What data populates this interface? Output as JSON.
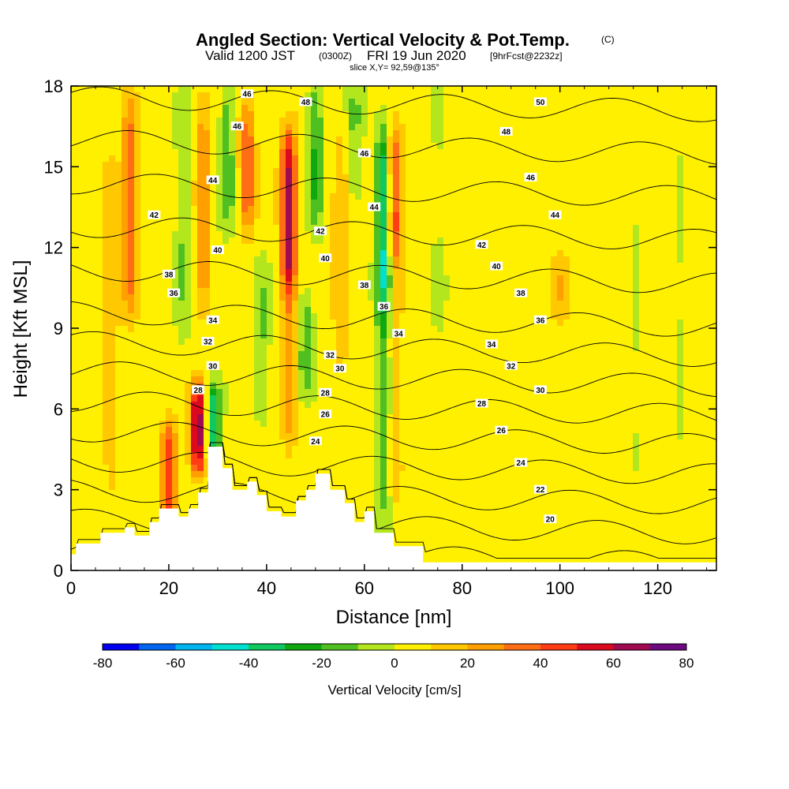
{
  "titles": {
    "main": "Angled Section: Vertical Velocity & Pot.Temp.",
    "main_suffix": "(C)",
    "valid_prefix": "Valid 1200 JST",
    "valid_z": "(0300Z)",
    "valid_date": "FRI 19 Jun 2020",
    "forecast": "[9hrFcst@2232z]",
    "slice": "slice X,Y= 92,59@135°"
  },
  "colors": {
    "bins": [
      "#0000ee",
      "#0066f0",
      "#00b4f0",
      "#00e0d0",
      "#10c860",
      "#10a810",
      "#50c020",
      "#b4e61e",
      "#fff000",
      "#ffc800",
      "#ffa000",
      "#ff6e14",
      "#ff3c14",
      "#dc0a1e",
      "#a00a50",
      "#6e0a80"
    ],
    "terrain": "#ffffff",
    "contour": "#000000"
  },
  "chart_data": {
    "type": "heatmap",
    "xlabel": "Distance [nm]",
    "ylabel": "Height [Kft MSL]",
    "xlim": [
      0,
      132
    ],
    "ylim": [
      0,
      18
    ],
    "x_ticks": [
      0,
      20,
      40,
      60,
      80,
      100,
      120
    ],
    "y_ticks": [
      0,
      3,
      6,
      9,
      12,
      15,
      18
    ],
    "x_tick_labels": [
      "0",
      "20",
      "40",
      "60",
      "80",
      "100",
      "120"
    ],
    "y_tick_labels": [
      "0",
      "3",
      "6",
      "9",
      "12",
      "15",
      "18"
    ],
    "colorbar": {
      "title": "Vertical Velocity [cm/s]",
      "levels": [
        -80,
        -70,
        -60,
        -50,
        -40,
        -30,
        -20,
        -10,
        0,
        10,
        20,
        30,
        40,
        50,
        60,
        70,
        80
      ],
      "tick_values": [
        -80,
        -60,
        -40,
        -20,
        0,
        20,
        40,
        60,
        80
      ],
      "tick_labels": [
        "-80",
        "-60",
        "-40",
        "-20",
        "0",
        "20",
        "40",
        "60",
        "80"
      ]
    },
    "background_velocity": 4,
    "velocity_features": [
      {
        "x": 12,
        "y0": 10,
        "y1": 17,
        "value": 35
      },
      {
        "x": 8,
        "y0": 3,
        "y1": 15,
        "value": 15
      },
      {
        "x": 20,
        "y0": 2,
        "y1": 5,
        "value": 45
      },
      {
        "x": 23,
        "y0": 9,
        "y1": 17,
        "value": -15
      },
      {
        "x": 26,
        "y0": 4,
        "y1": 6.5,
        "value": 65
      },
      {
        "x": 29,
        "y0": 4.5,
        "y1": 6.5,
        "value": -40
      },
      {
        "x": 27,
        "y0": 10,
        "y1": 17,
        "value": 25
      },
      {
        "x": 32,
        "y0": 13,
        "y1": 18,
        "value": -20
      },
      {
        "x": 36,
        "y0": 13,
        "y1": 17,
        "value": 35
      },
      {
        "x": 39,
        "y0": 6,
        "y1": 11,
        "value": -15
      },
      {
        "x": 44.5,
        "y0": 11,
        "y1": 16,
        "value": 60
      },
      {
        "x": 44.5,
        "y0": 5,
        "y1": 11,
        "value": 25
      },
      {
        "x": 48,
        "y0": 7,
        "y1": 10,
        "value": -20
      },
      {
        "x": 50,
        "y0": 13,
        "y1": 18,
        "value": -25
      },
      {
        "x": 55,
        "y0": 8,
        "y1": 16,
        "value": 15
      },
      {
        "x": 58,
        "y0": 14,
        "y1": 18,
        "value": -15
      },
      {
        "x": 64,
        "y0": 10,
        "y1": 16,
        "value": -50
      },
      {
        "x": 64,
        "y0": 2,
        "y1": 10,
        "value": -25
      },
      {
        "x": 66,
        "y0": 12,
        "y1": 16,
        "value": 45
      },
      {
        "x": 66,
        "y0": 3,
        "y1": 12,
        "value": 15
      },
      {
        "x": 75,
        "y0": 8,
        "y1": 18,
        "value": -5
      },
      {
        "x": 100,
        "y0": 9.5,
        "y1": 11.5,
        "value": 15
      },
      {
        "x": 116,
        "y0": 3,
        "y1": 17,
        "value": -5
      },
      {
        "x": 125,
        "y0": 0.5,
        "y1": 18,
        "value": -5
      }
    ],
    "terrain_profile": {
      "x": [
        0,
        1,
        1,
        6,
        6,
        11,
        11,
        13,
        13,
        16,
        16,
        18,
        18,
        22,
        22,
        24,
        24,
        26,
        26,
        28,
        28,
        31,
        31,
        33,
        33,
        36,
        36,
        38,
        38,
        40,
        40,
        43,
        43,
        46,
        46,
        48,
        48,
        50,
        50,
        53,
        53,
        56,
        56,
        58,
        58,
        60,
        60,
        62,
        62,
        66,
        66,
        72,
        72,
        132
      ],
      "y": [
        0.6,
        0.6,
        1.0,
        1.0,
        1.4,
        1.4,
        1.6,
        1.6,
        1.3,
        1.3,
        1.8,
        1.8,
        2.3,
        2.3,
        2.0,
        2.0,
        2.3,
        2.3,
        2.9,
        2.9,
        4.6,
        4.6,
        3.8,
        3.8,
        3.0,
        3.0,
        3.3,
        3.3,
        2.8,
        2.8,
        2.2,
        2.2,
        2.0,
        2.0,
        2.6,
        2.6,
        3.0,
        3.0,
        3.6,
        3.6,
        3.0,
        3.0,
        2.5,
        2.5,
        1.8,
        1.8,
        2.2,
        2.2,
        1.4,
        1.4,
        0.9,
        0.9,
        0.3,
        0.3
      ]
    },
    "theta_levels": [
      20,
      22,
      24,
      26,
      28,
      30,
      32,
      34,
      36,
      38,
      40,
      42,
      44,
      46,
      48,
      50
    ],
    "contour_labels": [
      {
        "x": 36,
        "y": 17.7,
        "label": "46"
      },
      {
        "x": 48,
        "y": 17.4,
        "label": "48"
      },
      {
        "x": 34,
        "y": 16.5,
        "label": "46"
      },
      {
        "x": 60,
        "y": 15.5,
        "label": "46"
      },
      {
        "x": 29,
        "y": 14.5,
        "label": "44"
      },
      {
        "x": 62,
        "y": 13.5,
        "label": "44"
      },
      {
        "x": 17,
        "y": 13.2,
        "label": "42"
      },
      {
        "x": 51,
        "y": 12.6,
        "label": "42"
      },
      {
        "x": 30,
        "y": 11.9,
        "label": "40"
      },
      {
        "x": 52,
        "y": 11.6,
        "label": "40"
      },
      {
        "x": 20,
        "y": 11.0,
        "label": "38"
      },
      {
        "x": 60,
        "y": 10.6,
        "label": "38"
      },
      {
        "x": 21,
        "y": 10.3,
        "label": "36"
      },
      {
        "x": 64,
        "y": 9.8,
        "label": "36"
      },
      {
        "x": 29,
        "y": 9.3,
        "label": "34"
      },
      {
        "x": 67,
        "y": 8.8,
        "label": "34"
      },
      {
        "x": 28,
        "y": 8.5,
        "label": "32"
      },
      {
        "x": 53,
        "y": 8.0,
        "label": "32"
      },
      {
        "x": 29,
        "y": 7.6,
        "label": "30"
      },
      {
        "x": 55,
        "y": 7.5,
        "label": "30"
      },
      {
        "x": 26,
        "y": 6.7,
        "label": "28"
      },
      {
        "x": 52,
        "y": 6.6,
        "label": "28"
      },
      {
        "x": 52,
        "y": 5.8,
        "label": "26"
      },
      {
        "x": 50,
        "y": 4.8,
        "label": "24"
      },
      {
        "x": 84,
        "y": 12.1,
        "label": "42"
      },
      {
        "x": 87,
        "y": 11.3,
        "label": "40"
      },
      {
        "x": 92,
        "y": 10.3,
        "label": "38"
      },
      {
        "x": 96,
        "y": 9.3,
        "label": "36"
      },
      {
        "x": 86,
        "y": 8.4,
        "label": "34"
      },
      {
        "x": 90,
        "y": 7.6,
        "label": "32"
      },
      {
        "x": 96,
        "y": 6.7,
        "label": "30"
      },
      {
        "x": 84,
        "y": 6.2,
        "label": "28"
      },
      {
        "x": 88,
        "y": 5.2,
        "label": "26"
      },
      {
        "x": 92,
        "y": 4.0,
        "label": "24"
      },
      {
        "x": 96,
        "y": 3.0,
        "label": "22"
      },
      {
        "x": 98,
        "y": 1.9,
        "label": "20"
      },
      {
        "x": 96,
        "y": 17.4,
        "label": "50"
      },
      {
        "x": 89,
        "y": 16.3,
        "label": "48"
      },
      {
        "x": 94,
        "y": 14.6,
        "label": "46"
      },
      {
        "x": 99,
        "y": 13.2,
        "label": "44"
      }
    ]
  }
}
